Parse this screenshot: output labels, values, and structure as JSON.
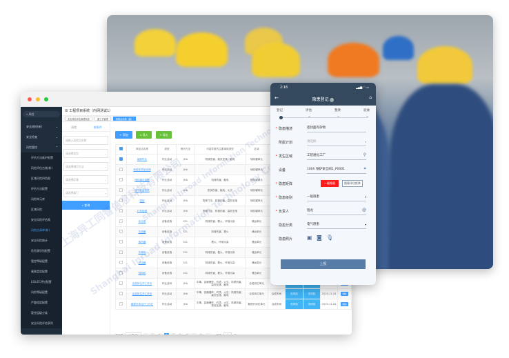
{
  "watermark": {
    "cn": "上海异工同智信息科技有限公司",
    "en": "Shanghai Inroad Information Technology Co., Ltd."
  },
  "colors": {
    "sidebar": "#1f2d3d",
    "accent": "#409eff",
    "mobile_header": "#34495e",
    "danger": "#ff1a1a",
    "export": "#67c23a"
  },
  "sidebar": {
    "search": "风险",
    "items": [
      {
        "label": "安全巡检(新)",
        "expanded": false
      },
      {
        "label": "安全检查",
        "expanded": false
      },
      {
        "label": "风险管控",
        "expanded": true
      }
    ],
    "sub_items": [
      "评估方法维护配置",
      "风险评估台账(新)",
      "区域风险四色图",
      "评估方法配置",
      "风险单元库",
      "区域风险",
      "安全风险评估表",
      "风险点清单(新)",
      "安全风险统计",
      "危险源识别配置",
      "管控等级配置",
      "事故类型配置",
      "LS/LEC评估配置",
      "风险等级配置",
      "严重程度配置",
      "管控层级分类",
      "安全风险评估表列"
    ],
    "active_sub": "风险点清单(新)"
  },
  "header": {
    "title": "工程项目系统（内网测试1）",
    "tags": [
      "安全风险评估管理系统",
      "偏工艺管理",
      "风险点清单（新）"
    ]
  },
  "filter": {
    "tabs": [
      "风险",
      "按条件"
    ],
    "active_tab": "按条件",
    "inputs": [
      "请输入风险点名称",
      "请选择类型",
      "请选择辨识方法",
      "请选择区域",
      "请选择部门"
    ],
    "query": "查询"
  },
  "toolbar": {
    "add": "+ 添加",
    "import": "⇩ 导入",
    "export": "⇪ 导出"
  },
  "table": {
    "columns": [
      "风险点名称",
      "类型",
      "辨识方法",
      "可能导致的主要事故类型",
      "区域",
      "部门",
      "",
      "",
      "日期",
      "操作"
    ],
    "rows": [
      {
        "checked": true,
        "name": "装卸作业",
        "type": "作业活动",
        "method": "JHA",
        "hazard": "机械伤害、高处坠落、触电",
        "area": "储存罐单元"
      },
      {
        "checked": false,
        "name": "危险化学品仓储",
        "type": "作业活动",
        "method": "JHA",
        "hazard": "",
        "area": "储存罐单元"
      },
      {
        "checked": false,
        "name": "储存罐区检修",
        "type": "作业活动",
        "method": "JHA",
        "hazard": "机械伤害、触电",
        "area": "储存罐单元"
      },
      {
        "checked": false,
        "name": "储气柜区检修",
        "type": "作业活动",
        "method": "JHA",
        "hazard": "机械伤害、触电、火灾",
        "area": "储存罐单元"
      },
      {
        "checked": false,
        "name": "巡检",
        "type": "作业活动",
        "method": "JHA",
        "hazard": "物体打击、机械伤害、高处坠落",
        "area": "储存罐单元"
      },
      {
        "checked": false,
        "name": "行车检修",
        "type": "作业活动",
        "method": "JHA",
        "hazard": "物体打击、机械伤害、高处坠落",
        "area": "储存罐单元"
      },
      {
        "checked": false,
        "name": "反应釜",
        "type": "设备设施",
        "method": "SCL",
        "hazard": "机械伤害、着火、环境污染",
        "area": "储运单元"
      },
      {
        "checked": false,
        "name": "冷却器",
        "type": "设备设施",
        "method": "SCL",
        "hazard": "机械伤害、着火",
        "area": "储运单元"
      },
      {
        "checked": false,
        "name": "换热器",
        "type": "设备设施",
        "method": "SCL",
        "hazard": "着火、环境污染",
        "area": "储运单元"
      },
      {
        "checked": false,
        "name": "压缩机",
        "type": "设备设施",
        "method": "SCL",
        "hazard": "机械伤害、着火、环境污染",
        "area": "储运单元"
      },
      {
        "checked": false,
        "name": "滤油器",
        "type": "设备设施",
        "method": "SCL",
        "hazard": "机械伤害、着火、环境污染",
        "area": "储运单元"
      },
      {
        "checked": false,
        "name": "鼓风机",
        "type": "设备设施",
        "method": "SCL",
        "hazard": "机械伤害、着火、环境污染",
        "area": "储运单元"
      },
      {
        "checked": false,
        "name": "合成岗位开工作业",
        "type": "作业活动",
        "method": "JHA",
        "hazard": "中毒、容器爆炸、灼烫、火灾、机械伤害、高处坠落、触电",
        "area": "合成岗位单元",
        "dept": "合成车间",
        "c1": "低风险",
        "c2": "低风险",
        "date": "2020-11-04",
        "op": "删除"
      },
      {
        "checked": false,
        "name": "合成岗位开工作业",
        "type": "作业活动",
        "method": "JHA",
        "hazard": "中毒、容器爆炸、灼烫、火灾、机械伤害、高处坠落、触电",
        "area": "合成岗位单元",
        "dept": "合成车间",
        "c1": "低风险",
        "c2": "低风险",
        "date": "2019-11-04",
        "op": "删除"
      },
      {
        "checked": false,
        "name": "氨提升岗位开工作业",
        "type": "作业活动",
        "method": "JHA",
        "hazard": "中毒、容器爆炸、灼烫、火灾、机械伤害、高处坠落、触电",
        "area": "氨提升岗位单元",
        "dept": "合成车间",
        "c1": "低风险",
        "c2": "低风险",
        "date": "2019-11-04",
        "op": "删除"
      }
    ]
  },
  "pager": {
    "total": "共72条",
    "size": "10条/页",
    "pages": [
      "1",
      "2",
      "3",
      "4",
      "5",
      "6",
      "...",
      "8"
    ],
    "current": "3",
    "goto_prefix": "前往",
    "goto_value": "1",
    "goto_suffix": "页"
  },
  "mobile": {
    "time": "2:16",
    "title": "隐患登记",
    "steps": [
      "登记",
      "评估",
      "整改",
      "验收"
    ],
    "current_step": 0,
    "fields": [
      {
        "label": "隐患描述",
        "required": true,
        "value": "密封面有杂物"
      },
      {
        "label": "所属计划",
        "required": false,
        "value": "请选择",
        "placeholder": true,
        "dropdown": true
      },
      {
        "label": "发生区域",
        "required": true,
        "value": "工智通化工厂",
        "icon": "location-icon"
      },
      {
        "label": "设备",
        "required": false,
        "value": "10t/h 锅炉安全阀1_P0001",
        "icon": "scan-icon"
      },
      {
        "label": "隐患矩阵",
        "required": true,
        "badge": "一级隐患",
        "button": "隐患评估矩阵"
      },
      {
        "label": "隐患级别",
        "required": true,
        "value": "一般隐患",
        "dropdown": true
      },
      {
        "label": "负责人",
        "required": true,
        "value": "程龙",
        "icon": "at-icon"
      },
      {
        "label": "隐患分类",
        "required": false,
        "value": "电气隐患",
        "dropdown": true
      },
      {
        "label": "隐患照片",
        "required": false
      }
    ],
    "submit": "上报"
  }
}
